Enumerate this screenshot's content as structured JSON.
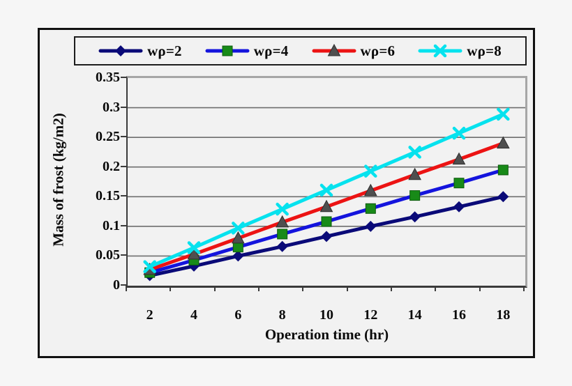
{
  "chart_data": {
    "type": "line",
    "title": "",
    "xlabel": "Operation time (hr)",
    "ylabel": "Mass of frost (kg/m2)",
    "x": [
      2,
      4,
      6,
      8,
      10,
      12,
      14,
      16,
      18
    ],
    "x_tick_labels": [
      "2",
      "4",
      "6",
      "8",
      "10",
      "12",
      "14",
      "16",
      "18"
    ],
    "y_ticks": [
      0,
      0.05,
      0.1,
      0.15,
      0.2,
      0.25,
      0.3,
      0.35
    ],
    "y_tick_labels": [
      "0",
      "0.05",
      "0.1",
      "0.15",
      "0.2",
      "0.25",
      "0.3",
      "0.35"
    ],
    "ylim": [
      0,
      0.35
    ],
    "grid": true,
    "legend_position": "top",
    "series": [
      {
        "name": "wρ=2",
        "marker": "diamond",
        "line_color": "#0a0a78",
        "marker_color": "#0a0a78",
        "values": [
          0.017,
          0.033,
          0.05,
          0.066,
          0.083,
          0.1,
          0.116,
          0.133,
          0.15
        ]
      },
      {
        "name": "wρ=4",
        "marker": "square",
        "line_color": "#1414dd",
        "marker_color": "#188a18",
        "values": [
          0.022,
          0.043,
          0.065,
          0.087,
          0.108,
          0.13,
          0.152,
          0.173,
          0.195
        ]
      },
      {
        "name": "wρ=6",
        "marker": "triangle",
        "line_color": "#ec1313",
        "marker_color": "#4f4f4f",
        "values": [
          0.027,
          0.053,
          0.08,
          0.107,
          0.133,
          0.16,
          0.187,
          0.213,
          0.24
        ]
      },
      {
        "name": "wρ=8",
        "marker": "x",
        "line_color": "#06e2ee",
        "marker_color": "#06e2ee",
        "values": [
          0.032,
          0.064,
          0.097,
          0.129,
          0.161,
          0.193,
          0.225,
          0.257,
          0.289
        ]
      }
    ],
    "colors": {
      "plot_background": "#f2f2f2",
      "page_background": "#f6f6f6",
      "gridline": "#6e6e6e",
      "axis_line": "#3b3b3b",
      "plot_border": "#a6a6a6",
      "frame_border": "#111111",
      "legend_border": "#1d1d1d",
      "text": "#0a0a0a"
    }
  }
}
